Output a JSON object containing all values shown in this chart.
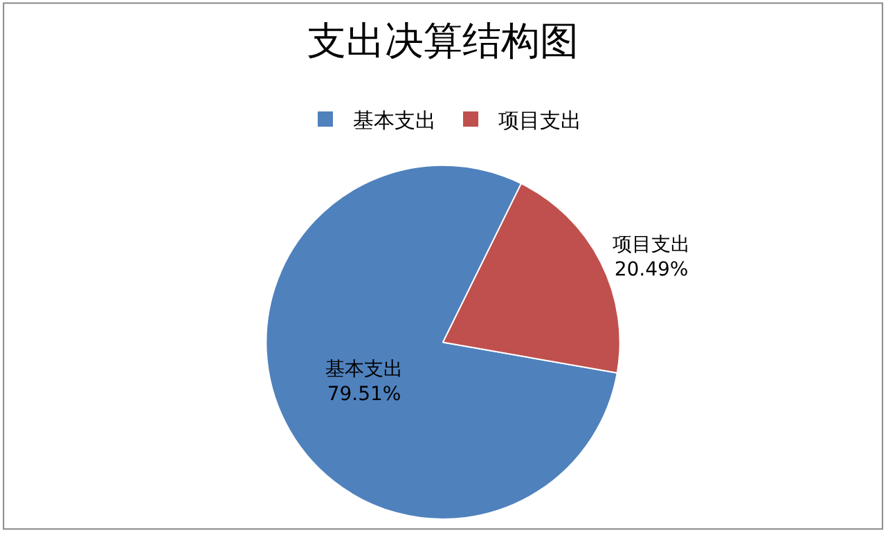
{
  "chart_data": {
    "type": "pie",
    "title": "支出决算结构图",
    "categories": [
      "基本支出",
      "项目支出"
    ],
    "values": [
      79.51,
      20.49
    ],
    "value_labels": [
      "79.51%",
      "20.49%"
    ],
    "colors": [
      "#4f81bd",
      "#c0504d"
    ],
    "legend": "top"
  }
}
